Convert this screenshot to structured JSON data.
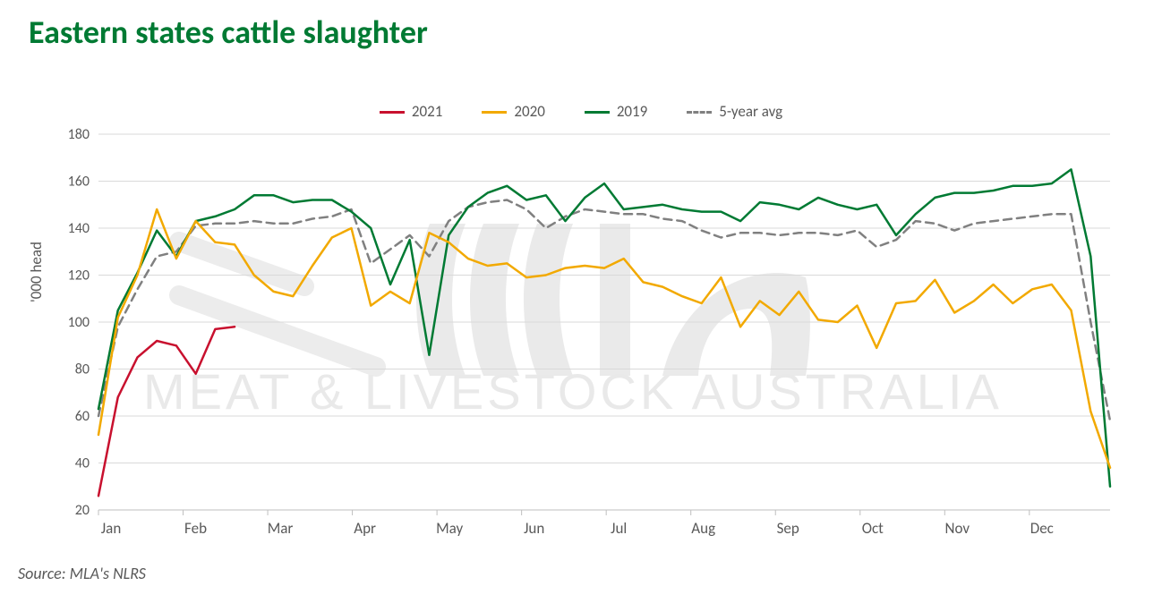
{
  "title": "Eastern states cattle slaughter",
  "ylabel": "'000 head",
  "source": "Source: MLA's NLRS",
  "watermark_text": "MEAT & LIVESTOCK AUSTRALIA",
  "chart": {
    "type": "line",
    "background_color": "#ffffff",
    "grid_color": "#d9d9d9",
    "axis_color": "#bfbfbf",
    "title_color": "#007a33",
    "title_fontsize": 36,
    "label_color": "#595959",
    "tick_fontsize": 16,
    "xtick_fontsize": 17,
    "line_width": 2.5,
    "xlim": [
      0,
      52
    ],
    "ylim": [
      20,
      180
    ],
    "ytick_step": 20,
    "month_ticks": [
      {
        "pos": 0,
        "label": "Jan"
      },
      {
        "pos": 4.35,
        "label": "Feb"
      },
      {
        "pos": 8.7,
        "label": "Mar"
      },
      {
        "pos": 13.05,
        "label": "Apr"
      },
      {
        "pos": 17.4,
        "label": "May"
      },
      {
        "pos": 21.75,
        "label": "Jun"
      },
      {
        "pos": 26.1,
        "label": "Jul"
      },
      {
        "pos": 30.45,
        "label": "Aug"
      },
      {
        "pos": 34.8,
        "label": "Sep"
      },
      {
        "pos": 39.15,
        "label": "Oct"
      },
      {
        "pos": 43.5,
        "label": "Nov"
      },
      {
        "pos": 47.85,
        "label": "Dec"
      }
    ],
    "series": [
      {
        "name": "2021",
        "color": "#c8102e",
        "dash": null,
        "data": [
          [
            0,
            26
          ],
          [
            1,
            68
          ],
          [
            2,
            85
          ],
          [
            3,
            92
          ],
          [
            4,
            90
          ],
          [
            5,
            78
          ],
          [
            6,
            97
          ],
          [
            7,
            98
          ]
        ]
      },
      {
        "name": "2020",
        "color": "#f2a900",
        "dash": null,
        "data": [
          [
            0,
            52
          ],
          [
            1,
            102
          ],
          [
            2,
            120
          ],
          [
            3,
            148
          ],
          [
            4,
            127
          ],
          [
            5,
            143
          ],
          [
            6,
            134
          ],
          [
            7,
            133
          ],
          [
            8,
            120
          ],
          [
            9,
            113
          ],
          [
            10,
            111
          ],
          [
            11,
            124
          ],
          [
            12,
            136
          ],
          [
            13,
            140
          ],
          [
            14,
            107
          ],
          [
            15,
            113
          ],
          [
            16,
            108
          ],
          [
            17,
            138
          ],
          [
            18,
            134
          ],
          [
            19,
            127
          ],
          [
            20,
            124
          ],
          [
            21,
            125
          ],
          [
            22,
            119
          ],
          [
            23,
            120
          ],
          [
            24,
            123
          ],
          [
            25,
            124
          ],
          [
            26,
            123
          ],
          [
            27,
            127
          ],
          [
            28,
            117
          ],
          [
            29,
            115
          ],
          [
            30,
            111
          ],
          [
            31,
            108
          ],
          [
            32,
            119
          ],
          [
            33,
            98
          ],
          [
            34,
            109
          ],
          [
            35,
            103
          ],
          [
            36,
            113
          ],
          [
            37,
            101
          ],
          [
            38,
            100
          ],
          [
            39,
            107
          ],
          [
            40,
            89
          ],
          [
            41,
            108
          ],
          [
            42,
            109
          ],
          [
            43,
            118
          ],
          [
            44,
            104
          ],
          [
            45,
            109
          ],
          [
            46,
            116
          ],
          [
            47,
            108
          ],
          [
            48,
            114
          ],
          [
            49,
            116
          ],
          [
            50,
            105
          ],
          [
            51,
            62
          ],
          [
            52,
            38
          ]
        ]
      },
      {
        "name": "2019",
        "color": "#007a33",
        "dash": null,
        "data": [
          [
            0,
            63
          ],
          [
            1,
            105
          ],
          [
            2,
            121
          ],
          [
            3,
            139
          ],
          [
            4,
            128
          ],
          [
            5,
            143
          ],
          [
            6,
            145
          ],
          [
            7,
            148
          ],
          [
            8,
            154
          ],
          [
            9,
            154
          ],
          [
            10,
            151
          ],
          [
            11,
            152
          ],
          [
            12,
            152
          ],
          [
            13,
            147
          ],
          [
            14,
            140
          ],
          [
            15,
            116
          ],
          [
            16,
            135
          ],
          [
            17,
            86
          ],
          [
            18,
            137
          ],
          [
            19,
            149
          ],
          [
            20,
            155
          ],
          [
            21,
            158
          ],
          [
            22,
            152
          ],
          [
            23,
            154
          ],
          [
            24,
            143
          ],
          [
            25,
            153
          ],
          [
            26,
            159
          ],
          [
            27,
            148
          ],
          [
            28,
            149
          ],
          [
            29,
            150
          ],
          [
            30,
            148
          ],
          [
            31,
            147
          ],
          [
            32,
            147
          ],
          [
            33,
            143
          ],
          [
            34,
            151
          ],
          [
            35,
            150
          ],
          [
            36,
            148
          ],
          [
            37,
            153
          ],
          [
            38,
            150
          ],
          [
            39,
            148
          ],
          [
            40,
            150
          ],
          [
            41,
            137
          ],
          [
            42,
            146
          ],
          [
            43,
            153
          ],
          [
            44,
            155
          ],
          [
            45,
            155
          ],
          [
            46,
            156
          ],
          [
            47,
            158
          ],
          [
            48,
            158
          ],
          [
            49,
            159
          ],
          [
            50,
            165
          ],
          [
            51,
            128
          ],
          [
            52,
            30
          ]
        ]
      },
      {
        "name": "5-year avg",
        "color": "#808080",
        "dash": "9 6",
        "data": [
          [
            0,
            60
          ],
          [
            1,
            98
          ],
          [
            2,
            114
          ],
          [
            3,
            128
          ],
          [
            4,
            130
          ],
          [
            5,
            141
          ],
          [
            6,
            142
          ],
          [
            7,
            142
          ],
          [
            8,
            143
          ],
          [
            9,
            142
          ],
          [
            10,
            142
          ],
          [
            11,
            144
          ],
          [
            12,
            145
          ],
          [
            13,
            148
          ],
          [
            14,
            125
          ],
          [
            15,
            131
          ],
          [
            16,
            137
          ],
          [
            17,
            128
          ],
          [
            18,
            143
          ],
          [
            19,
            149
          ],
          [
            20,
            151
          ],
          [
            21,
            152
          ],
          [
            22,
            148
          ],
          [
            23,
            140
          ],
          [
            24,
            145
          ],
          [
            25,
            148
          ],
          [
            26,
            147
          ],
          [
            27,
            146
          ],
          [
            28,
            146
          ],
          [
            29,
            144
          ],
          [
            30,
            143
          ],
          [
            31,
            139
          ],
          [
            32,
            136
          ],
          [
            33,
            138
          ],
          [
            34,
            138
          ],
          [
            35,
            137
          ],
          [
            36,
            138
          ],
          [
            37,
            138
          ],
          [
            38,
            137
          ],
          [
            39,
            139
          ],
          [
            40,
            132
          ],
          [
            41,
            135
          ],
          [
            42,
            143
          ],
          [
            43,
            142
          ],
          [
            44,
            139
          ],
          [
            45,
            142
          ],
          [
            46,
            143
          ],
          [
            47,
            144
          ],
          [
            48,
            145
          ],
          [
            49,
            146
          ],
          [
            50,
            146
          ],
          [
            51,
            100
          ],
          [
            52,
            58
          ]
        ]
      }
    ],
    "legend_order": [
      "2021",
      "2020",
      "2019",
      "5-year avg"
    ]
  }
}
